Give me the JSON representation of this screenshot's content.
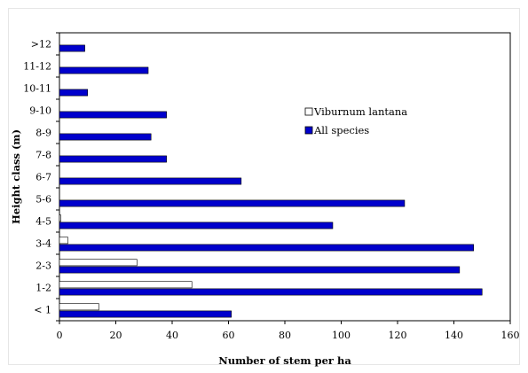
{
  "chart_data": {
    "type": "bar",
    "orientation": "horizontal",
    "title": "",
    "xlabel": "Number of stem per ha",
    "ylabel": "Height class (m)",
    "xlim": [
      0,
      160
    ],
    "xticks": [
      0,
      20,
      40,
      60,
      80,
      100,
      120,
      140,
      160
    ],
    "grid": false,
    "legend_position": "center-right",
    "categories": [
      "< 1",
      "1-2",
      "2-3",
      "3-4",
      "4-5",
      "5-6",
      "6-7",
      "7-8",
      "8-9",
      "9-10",
      "10-11",
      "11-12",
      ">12"
    ],
    "series": [
      {
        "name": "Viburnum lantana",
        "color": "#ffffff",
        "stroke": "#000000",
        "values": [
          14,
          47,
          27.5,
          3,
          0.5,
          0,
          0,
          0,
          0,
          0,
          0,
          0,
          0
        ]
      },
      {
        "name": "All species",
        "color": "#0000cc",
        "stroke": "#000000",
        "values": [
          61,
          150,
          142,
          147,
          97,
          122.5,
          64.5,
          38,
          32.5,
          38,
          10,
          31.5,
          9
        ]
      }
    ]
  }
}
